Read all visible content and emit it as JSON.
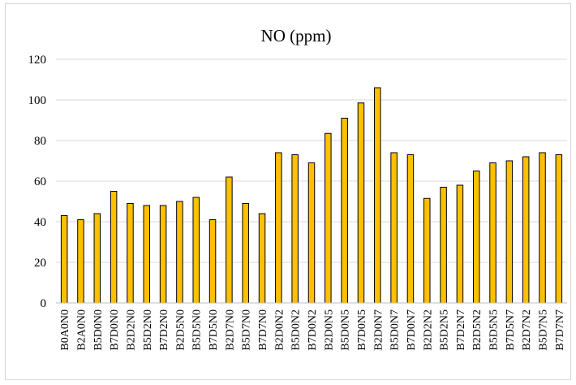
{
  "chart_data": {
    "type": "bar",
    "title": "NO (ppm)",
    "xlabel": "",
    "ylabel": "",
    "ylim": [
      0,
      120
    ],
    "yticks": [
      0,
      20,
      40,
      60,
      80,
      100,
      120
    ],
    "grid": true,
    "legend": "none",
    "bar_color": "#ffc000",
    "bar_edge_color": "#000000",
    "gridline_color": "#d9d9d9",
    "categories": [
      "B0A0N0",
      "B2A0N0",
      "B5D0N0",
      "B7D0N0",
      "B2D2N0",
      "B5D2N0",
      "B7D2N0",
      "B2D5N0",
      "B5D5N0",
      "B7D5N0",
      "B2D7N0",
      "B5D7N0",
      "B7D7N0",
      "B2D0N2",
      "B5D0N2",
      "B7D0N2",
      "B2D0N5",
      "B5D0N5",
      "B7D0N5",
      "B2D0N7",
      "B5D0N7",
      "B7D0N7",
      "B2D2N2",
      "B5D2N5",
      "B7D2N7",
      "B2D5N2",
      "B5D5N5",
      "B7D5N7",
      "B2D7N2",
      "B5D7N5",
      "B7D7N7"
    ],
    "values": [
      43,
      41,
      44,
      55,
      49,
      48,
      48,
      50,
      52,
      41,
      62,
      49,
      44,
      74,
      73,
      69,
      83.5,
      91,
      98.5,
      106,
      74,
      73,
      51.5,
      57,
      58,
      65,
      69,
      70,
      72,
      74,
      73
    ]
  }
}
